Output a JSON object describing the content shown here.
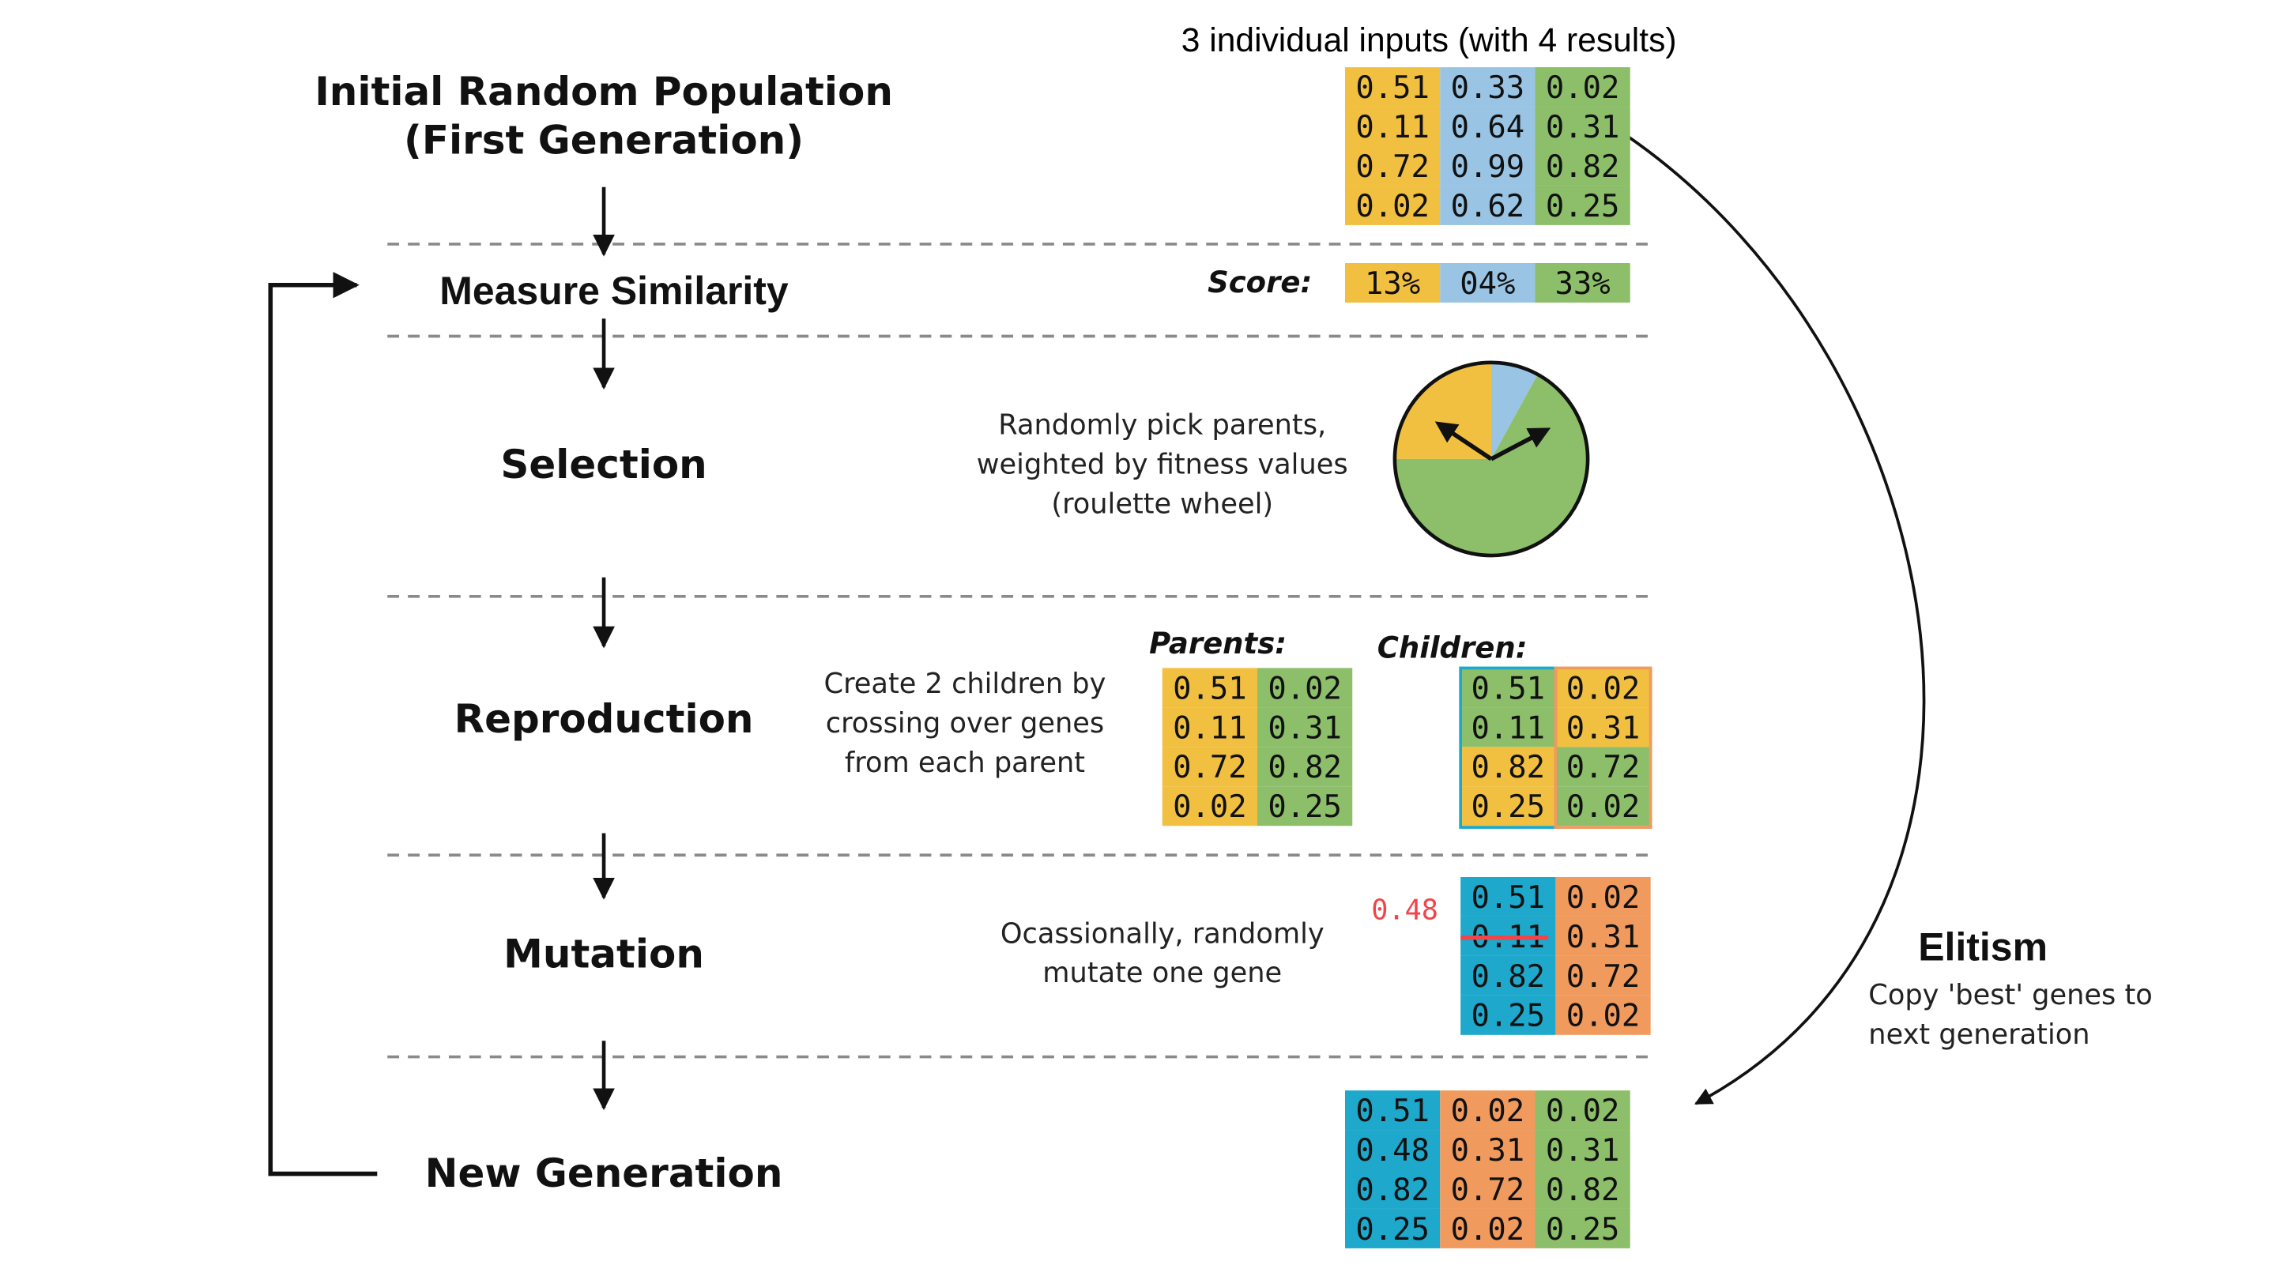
{
  "header": "3 individual inputs (with 4 results)",
  "stages": {
    "initial_line1": "Initial Random Population",
    "initial_line2": "(First Generation)",
    "measure": "Measure Similarity",
    "selection": "Selection",
    "reproduction": "Reproduction",
    "mutation": "Mutation",
    "new_generation": "New Generation"
  },
  "score_label": "Score:",
  "population": [
    [
      "0.51",
      "0.33",
      "0.02"
    ],
    [
      "0.11",
      "0.64",
      "0.31"
    ],
    [
      "0.72",
      "0.99",
      "0.82"
    ],
    [
      "0.02",
      "0.62",
      "0.25"
    ]
  ],
  "scores": [
    "13%",
    "04%",
    "33%"
  ],
  "selection_note": [
    "Randomly pick parents,",
    "weighted by fitness values",
    "(roulette wheel)"
  ],
  "roulette_slices": [
    {
      "share": 0.25,
      "color": "#f2c040"
    },
    {
      "share": 0.08,
      "color": "#9ac4e4"
    },
    {
      "share": 0.67,
      "color": "#8dbf6a"
    }
  ],
  "reproduction_note": [
    "Create 2 children by",
    "crossing over genes",
    "from each parent"
  ],
  "parents_label": "Parents:",
  "children_label": "Children:",
  "parents": [
    [
      "0.51",
      "0.02"
    ],
    [
      "0.11",
      "0.31"
    ],
    [
      "0.72",
      "0.82"
    ],
    [
      "0.02",
      "0.25"
    ]
  ],
  "children": [
    [
      "0.51",
      "0.02"
    ],
    [
      "0.11",
      "0.31"
    ],
    [
      "0.82",
      "0.72"
    ],
    [
      "0.25",
      "0.02"
    ]
  ],
  "mutation_note": [
    "Ocassionally, randomly",
    "mutate one gene"
  ],
  "mutation_new_value": "0.48",
  "mutated": [
    [
      "0.51",
      "0.02"
    ],
    [
      "0.11",
      "0.31"
    ],
    [
      "0.82",
      "0.72"
    ],
    [
      "0.25",
      "0.02"
    ]
  ],
  "new_generation": [
    [
      "0.51",
      "0.02",
      "0.02"
    ],
    [
      "0.48",
      "0.31",
      "0.31"
    ],
    [
      "0.82",
      "0.72",
      "0.82"
    ],
    [
      "0.25",
      "0.02",
      "0.25"
    ]
  ],
  "elitism_title": "Elitism",
  "elitism_desc": [
    "Copy 'best' genes to",
    "next generation"
  ],
  "colors": {
    "yellow": "#f2c040",
    "light_blue": "#9ac4e4",
    "green": "#8dbf6a",
    "orange": "#f09a5e",
    "teal": "#1da8cc",
    "strike_red": "#f2444a"
  }
}
